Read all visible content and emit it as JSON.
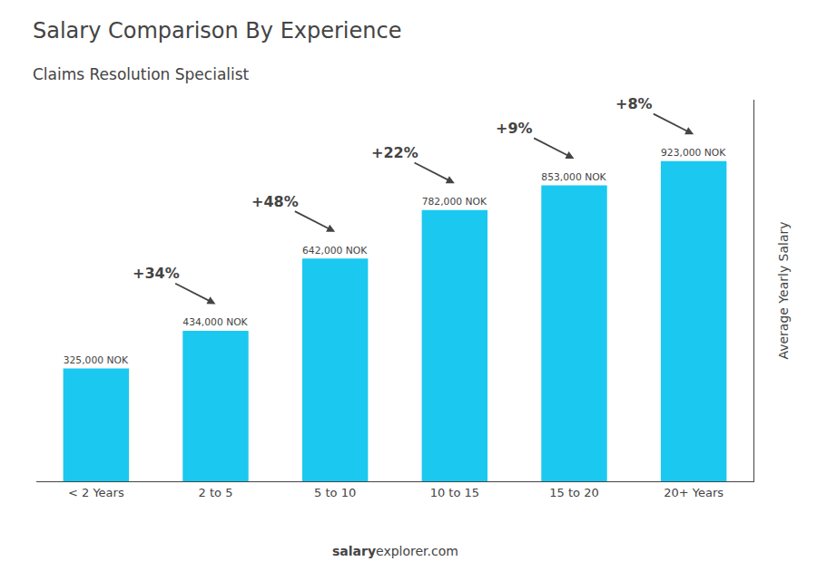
{
  "chart_data": {
    "type": "bar",
    "title": "Salary Comparison By Experience",
    "subtitle": "Claims Resolution Specialist",
    "ylabel": "Average Yearly Salary",
    "footer": [
      "salary",
      "explorer.com"
    ],
    "categories": [
      "< 2 Years",
      "2 to 5",
      "5 to 10",
      "10 to 15",
      "15 to 20",
      "20+ Years"
    ],
    "values": [
      325000,
      434000,
      642000,
      782000,
      853000,
      923000
    ],
    "value_labels": [
      "325,000 NOK",
      "434,000 NOK",
      "642,000 NOK",
      "782,000 NOK",
      "853,000 NOK",
      "923,000 NOK"
    ],
    "data_labels": true,
    "annotations": [
      "+34%",
      "+48%",
      "+22%",
      "+9%",
      "+8%"
    ],
    "color": "#1ac8f0",
    "ylim": [
      0,
      1100000
    ],
    "tick_labels": "x",
    "grid": false
  }
}
